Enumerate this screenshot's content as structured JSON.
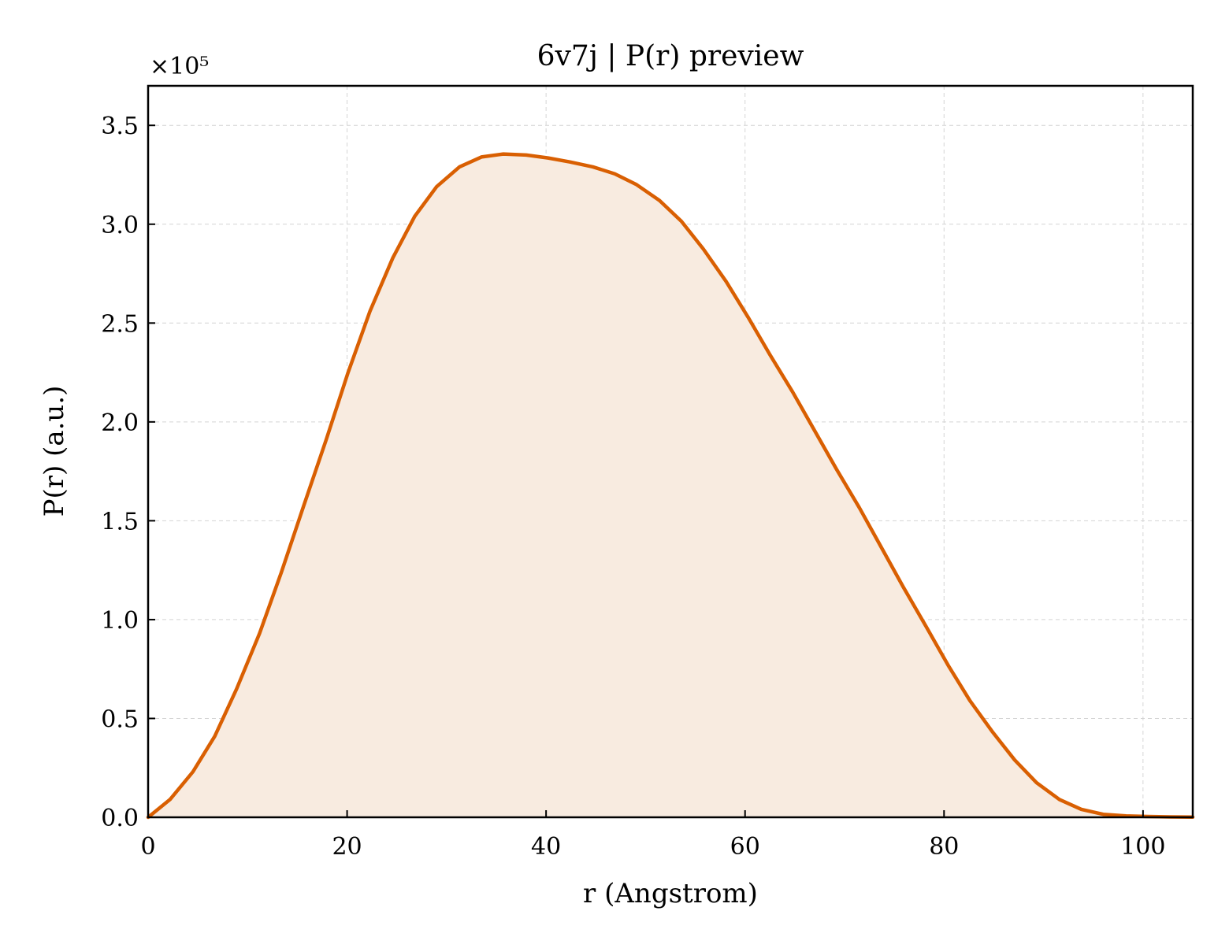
{
  "chart_data": {
    "type": "area",
    "title": "6v7j | P(r) preview",
    "xlabel": "r (Angstrom)",
    "ylabel": "P(r) (a.u.)",
    "y_offset_text": "×10⁵",
    "xlim": [
      0,
      105
    ],
    "ylim": [
      0,
      3.7
    ],
    "x_ticks": [
      0,
      20,
      40,
      60,
      80,
      100
    ],
    "x_tick_labels": [
      "0",
      "20",
      "40",
      "60",
      "80",
      "100"
    ],
    "y_ticks": [
      0,
      0.5,
      1.0,
      1.5,
      2.0,
      2.5,
      3.0,
      3.5
    ],
    "y_tick_labels": [
      "0.0",
      "0.5",
      "1.0",
      "1.5",
      "2.0",
      "2.5",
      "3.0",
      "3.5"
    ],
    "grid": true,
    "line_color": "#d95f02",
    "fill_color": "#f8ebe0",
    "series": [
      {
        "x": [
          0,
          2.2,
          4.5,
          6.7,
          8.9,
          11.2,
          13.4,
          15.6,
          17.9,
          20.1,
          22.3,
          24.6,
          26.8,
          29.0,
          31.3,
          33.5,
          35.7,
          38.0,
          40.2,
          42.4,
          44.7,
          46.9,
          49.1,
          51.4,
          53.6,
          55.8,
          58.1,
          60.3,
          62.5,
          64.8,
          67.0,
          69.2,
          71.5,
          73.7,
          75.9,
          78.2,
          80.4,
          82.6,
          84.9,
          87.1,
          89.3,
          91.6,
          93.8,
          96.0,
          98.3,
          100.5,
          102.7,
          105.0
        ],
        "values": [
          0.0,
          0.09,
          0.23,
          0.41,
          0.65,
          0.93,
          1.24,
          1.57,
          1.91,
          2.25,
          2.56,
          2.83,
          3.04,
          3.19,
          3.29,
          3.34,
          3.355,
          3.35,
          3.335,
          3.315,
          3.29,
          3.255,
          3.2,
          3.12,
          3.015,
          2.875,
          2.71,
          2.53,
          2.34,
          2.15,
          1.955,
          1.76,
          1.565,
          1.365,
          1.165,
          0.965,
          0.77,
          0.59,
          0.43,
          0.29,
          0.175,
          0.09,
          0.04,
          0.015,
          0.007,
          0.004,
          0.002,
          0.001
        ]
      }
    ]
  }
}
